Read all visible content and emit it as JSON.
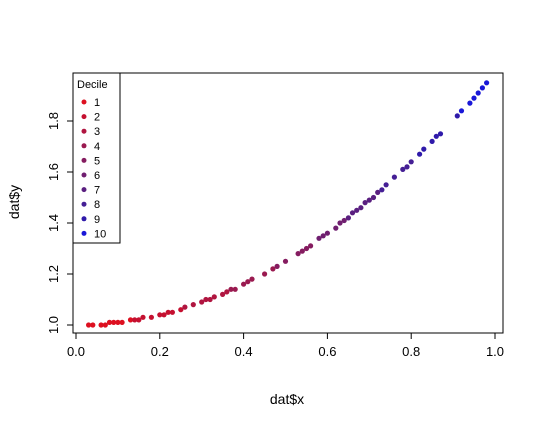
{
  "chart_data": {
    "type": "scatter",
    "title": "",
    "xlabel": "dat$x",
    "ylabel": "dat$y",
    "xlim": [
      0,
      1
    ],
    "ylim": [
      1,
      1.95
    ],
    "x_ticks": [
      0.0,
      0.2,
      0.4,
      0.6,
      0.8,
      1.0
    ],
    "x_tick_labels": [
      "0.0",
      "0.2",
      "0.4",
      "0.6",
      "0.8",
      "1.0"
    ],
    "y_ticks": [
      1.0,
      1.2,
      1.4,
      1.6,
      1.8
    ],
    "y_tick_labels": [
      "1.0",
      "1.2",
      "1.4",
      "1.6",
      "1.8"
    ],
    "grid": false,
    "legend": {
      "title": "Decile",
      "placement": "top-left",
      "entries": [
        "1",
        "2",
        "3",
        "4",
        "5",
        "6",
        "7",
        "8",
        "9",
        "10"
      ]
    },
    "decile_colors": [
      "#dd1020",
      "#c51030",
      "#b01540",
      "#9a1a50",
      "#851c60",
      "#701f70",
      "#5a1f80",
      "#451f95",
      "#2f1aaa",
      "#1a18d8"
    ],
    "series": [
      {
        "name": "1",
        "x": [
          0.03,
          0.04,
          0.06,
          0.07,
          0.08,
          0.09,
          0.1,
          0.11,
          0.13
        ],
        "y": [
          1.0,
          1.0,
          1.0,
          1.0,
          1.01,
          1.01,
          1.01,
          1.01,
          1.02
        ]
      },
      {
        "name": "2",
        "x": [
          0.14,
          0.15,
          0.16,
          0.18,
          0.2,
          0.21,
          0.22,
          0.23,
          0.25
        ],
        "y": [
          1.02,
          1.02,
          1.03,
          1.03,
          1.04,
          1.04,
          1.05,
          1.05,
          1.06
        ]
      },
      {
        "name": "3",
        "x": [
          0.26,
          0.28,
          0.3,
          0.31,
          0.32,
          0.33,
          0.35,
          0.36
        ],
        "y": [
          1.07,
          1.08,
          1.09,
          1.1,
          1.1,
          1.11,
          1.12,
          1.13
        ]
      },
      {
        "name": "4",
        "x": [
          0.37,
          0.38,
          0.4,
          0.41,
          0.42,
          0.45,
          0.47
        ],
        "y": [
          1.14,
          1.14,
          1.16,
          1.17,
          1.18,
          1.2,
          1.22
        ]
      },
      {
        "name": "5",
        "x": [
          0.48,
          0.5,
          0.53,
          0.54,
          0.55,
          0.56
        ],
        "y": [
          1.23,
          1.25,
          1.28,
          1.29,
          1.3,
          1.31
        ]
      },
      {
        "name": "6",
        "x": [
          0.58,
          0.59,
          0.6,
          0.62,
          0.63,
          0.64
        ],
        "y": [
          1.34,
          1.35,
          1.36,
          1.38,
          1.4,
          1.41
        ]
      },
      {
        "name": "7",
        "x": [
          0.65,
          0.66,
          0.67,
          0.68,
          0.69,
          0.7,
          0.71,
          0.72
        ],
        "y": [
          1.42,
          1.44,
          1.45,
          1.46,
          1.48,
          1.49,
          1.5,
          1.52
        ]
      },
      {
        "name": "8",
        "x": [
          0.73,
          0.74,
          0.76,
          0.78,
          0.79,
          0.8
        ],
        "y": [
          1.53,
          1.55,
          1.58,
          1.61,
          1.62,
          1.64
        ]
      },
      {
        "name": "9",
        "x": [
          0.82,
          0.83,
          0.85,
          0.86,
          0.87,
          0.91
        ],
        "y": [
          1.67,
          1.69,
          1.72,
          1.74,
          1.75,
          1.82
        ]
      },
      {
        "name": "10",
        "x": [
          0.92,
          0.94,
          0.95,
          0.96,
          0.97,
          0.98
        ],
        "y": [
          1.84,
          1.87,
          1.89,
          1.91,
          1.93,
          1.95
        ]
      }
    ]
  }
}
